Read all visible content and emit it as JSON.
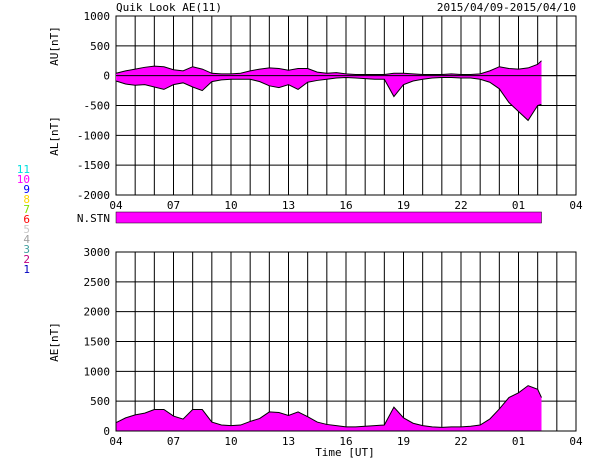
{
  "header": {
    "title": "Quik Look AE(11)",
    "date_range": "2015/04/09-2015/04/10"
  },
  "station_legend": [
    {
      "label": "11",
      "color": "#00e0e0"
    },
    {
      "label": "10",
      "color": "#ff00ff"
    },
    {
      "label": "9",
      "color": "#0000ff"
    },
    {
      "label": "8",
      "color": "#ffd700"
    },
    {
      "label": "7",
      "color": "#80e000"
    },
    {
      "label": "6",
      "color": "#ff0000"
    },
    {
      "label": "5",
      "color": "#c8c8c8"
    },
    {
      "label": "4",
      "color": "#a0a0a0"
    },
    {
      "label": "3",
      "color": "#40a0a0"
    },
    {
      "label": "2",
      "color": "#c00080"
    },
    {
      "label": "1",
      "color": "#0000c0"
    }
  ],
  "colors": {
    "fill": "#ff00ff",
    "line": "#000000",
    "grid": "#000000"
  },
  "chart_data": [
    {
      "type": "area",
      "panel": "AU/AL",
      "ylabel_top": "AU[nT]",
      "ylabel_bottom": "AL[nT]",
      "ylim": [
        -2000,
        1000
      ],
      "yticks": [
        1000,
        500,
        0,
        -500,
        -1000,
        -1500,
        -2000
      ],
      "xlim": [
        4,
        28
      ],
      "xtick_labels": [
        "04",
        "07",
        "10",
        "13",
        "16",
        "19",
        "22",
        "01",
        "04"
      ],
      "x": [
        4.0,
        4.5,
        5.0,
        5.5,
        6.0,
        6.5,
        7.0,
        7.5,
        8.0,
        8.5,
        9.0,
        9.5,
        10.0,
        10.5,
        11.0,
        11.5,
        12.0,
        12.5,
        13.0,
        13.5,
        14.0,
        14.5,
        15.0,
        15.5,
        16.0,
        16.5,
        17.0,
        17.5,
        18.0,
        18.5,
        19.0,
        19.5,
        20.0,
        20.5,
        21.0,
        21.5,
        22.0,
        22.5,
        23.0,
        23.5,
        24.0,
        24.5,
        25.0,
        25.5,
        26.0,
        26.2
      ],
      "series": [
        {
          "values": [
            40,
            80,
            110,
            140,
            160,
            150,
            100,
            80,
            150,
            110,
            40,
            30,
            30,
            40,
            80,
            110,
            130,
            120,
            90,
            120,
            120,
            60,
            40,
            50,
            30,
            20,
            20,
            20,
            20,
            40,
            40,
            30,
            20,
            20,
            20,
            30,
            20,
            20,
            30,
            80,
            150,
            120,
            110,
            130,
            190,
            250
          ]
        },
        {
          "values": [
            -90,
            -140,
            -160,
            -150,
            -190,
            -230,
            -150,
            -120,
            -190,
            -250,
            -100,
            -70,
            -60,
            -60,
            -60,
            -100,
            -170,
            -200,
            -150,
            -230,
            -110,
            -80,
            -60,
            -40,
            -30,
            -40,
            -50,
            -60,
            -60,
            -350,
            -150,
            -90,
            -60,
            -40,
            -30,
            -30,
            -40,
            -40,
            -60,
            -110,
            -220,
            -450,
            -600,
            -750,
            -500,
            -480
          ]
        }
      ]
    },
    {
      "type": "heatmap",
      "panel": "N.STN",
      "label": "N.STN",
      "xlim": [
        4,
        28
      ],
      "x": [
        4.0,
        26.2
      ],
      "values": [
        10,
        10
      ]
    },
    {
      "type": "area",
      "panel": "AE",
      "ylabel": "AE[nT]",
      "xlabel": "Time [UT]",
      "ylim": [
        0,
        3000
      ],
      "yticks": [
        3000,
        2500,
        2000,
        1500,
        1000,
        500,
        0
      ],
      "xlim": [
        4,
        28
      ],
      "xtick_labels": [
        "04",
        "07",
        "10",
        "13",
        "16",
        "19",
        "22",
        "01",
        "04"
      ],
      "x": [
        4.0,
        4.5,
        5.0,
        5.5,
        6.0,
        6.5,
        7.0,
        7.5,
        8.0,
        8.5,
        9.0,
        9.5,
        10.0,
        10.5,
        11.0,
        11.5,
        12.0,
        12.5,
        13.0,
        13.5,
        14.0,
        14.5,
        15.0,
        15.5,
        16.0,
        16.5,
        17.0,
        17.5,
        18.0,
        18.5,
        19.0,
        19.5,
        20.0,
        20.5,
        21.0,
        21.5,
        22.0,
        22.5,
        23.0,
        23.5,
        24.0,
        24.5,
        25.0,
        25.5,
        26.0,
        26.2
      ],
      "series": [
        {
          "values": [
            140,
            220,
            270,
            300,
            360,
            360,
            250,
            200,
            360,
            360,
            150,
            100,
            90,
            100,
            160,
            210,
            320,
            310,
            260,
            320,
            240,
            150,
            110,
            90,
            70,
            70,
            80,
            90,
            100,
            400,
            220,
            130,
            90,
            70,
            60,
            70,
            70,
            80,
            100,
            200,
            370,
            560,
            640,
            760,
            700,
            560
          ]
        }
      ]
    }
  ]
}
